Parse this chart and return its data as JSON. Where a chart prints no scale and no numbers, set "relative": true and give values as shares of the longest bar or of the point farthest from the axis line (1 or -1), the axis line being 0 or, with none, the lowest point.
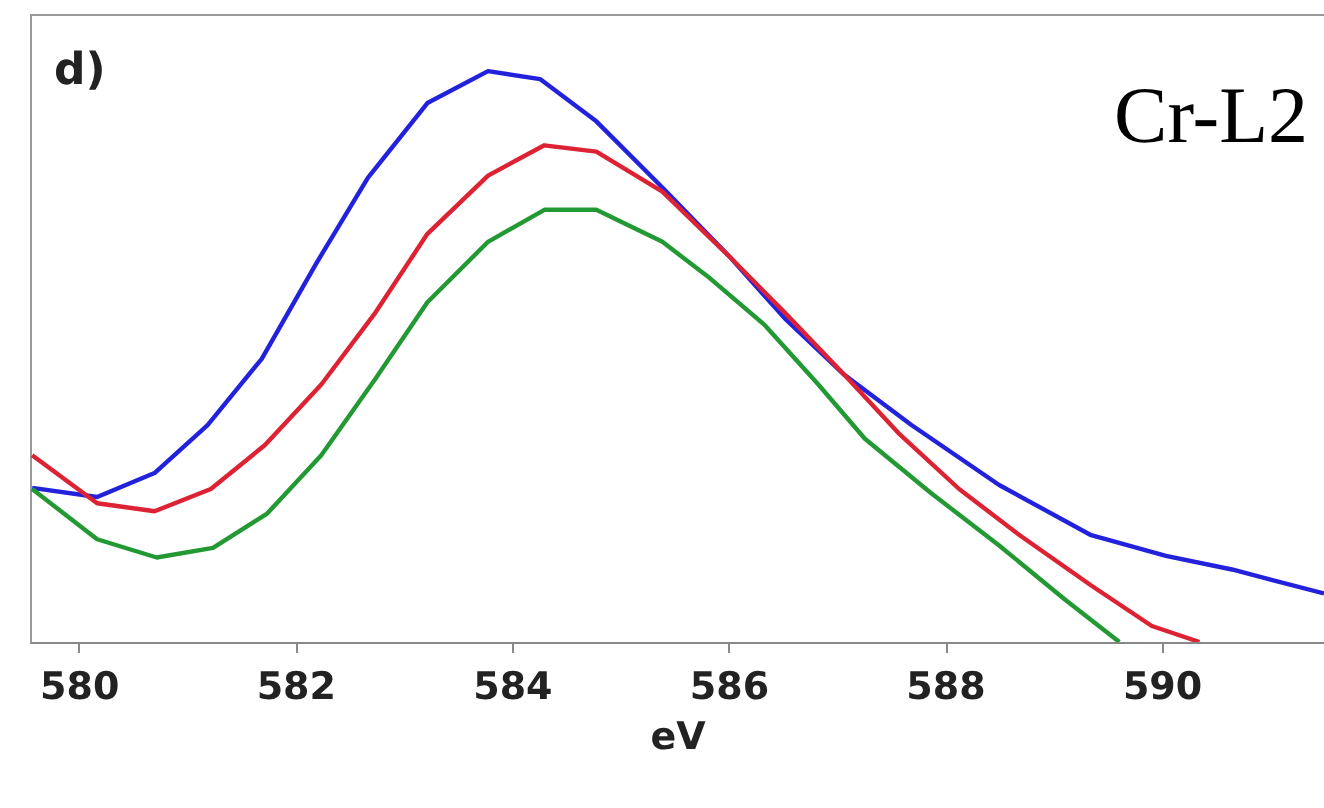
{
  "chart_data": {
    "type": "line",
    "title": "d)",
    "xlabel": "eV",
    "annotations": [
      "Cr-L2"
    ],
    "relative": true,
    "xlim": [
      579.55,
      591.5
    ],
    "xticks": [
      580,
      582,
      584,
      586,
      588,
      590
    ],
    "tick_labels": "x",
    "grid": false,
    "series": [
      {
        "color": "#2222dd",
        "x": [
          579.57,
          580.17,
          580.7,
          581.19,
          581.69,
          582.19,
          582.67,
          583.22,
          583.78,
          584.26,
          584.78,
          585.39,
          586.02,
          586.52,
          587.07,
          587.69,
          588.5,
          589.35,
          590.04,
          590.65,
          591.5
        ],
        "values": [
          0.27,
          0.254,
          0.296,
          0.38,
          0.496,
          0.662,
          0.813,
          0.944,
          1,
          0.986,
          0.912,
          0.796,
          0.673,
          0.567,
          0.468,
          0.38,
          0.275,
          0.187,
          0.151,
          0.127,
          0.085
        ]
      },
      {
        "color": "#dd2233",
        "x": [
          579.57,
          580.17,
          580.7,
          581.22,
          581.72,
          582.24,
          582.74,
          583.22,
          583.78,
          584.3,
          584.78,
          585.39,
          586.02,
          586.52,
          587.07,
          587.57,
          588.13,
          588.69,
          589.35,
          589.91,
          590.35
        ],
        "values": [
          0.327,
          0.243,
          0.229,
          0.268,
          0.345,
          0.451,
          0.577,
          0.715,
          0.817,
          0.87,
          0.859,
          0.789,
          0.673,
          0.577,
          0.468,
          0.366,
          0.268,
          0.187,
          0.099,
          0.028,
          0
        ]
      },
      {
        "color": "#229933",
        "x": [
          579.57,
          580.17,
          580.72,
          581.24,
          581.74,
          582.24,
          582.74,
          583.22,
          583.78,
          584.3,
          584.78,
          585.39,
          585.83,
          586.33,
          586.83,
          587.26,
          587.87,
          588.5,
          589.11,
          589.61
        ],
        "values": [
          0.268,
          0.18,
          0.148,
          0.165,
          0.225,
          0.327,
          0.461,
          0.595,
          0.701,
          0.757,
          0.757,
          0.701,
          0.637,
          0.556,
          0.451,
          0.356,
          0.261,
          0.169,
          0.074,
          0
        ]
      }
    ]
  }
}
